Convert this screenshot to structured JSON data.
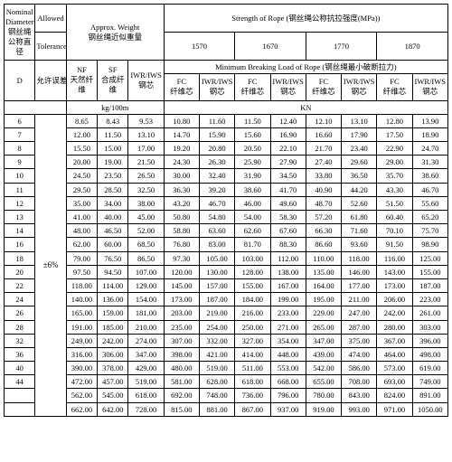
{
  "header": {
    "nominal_diameter": {
      "en": "Nominal Diameter",
      "zh": "钢丝绳公称直径"
    },
    "allowed": "Allowed",
    "tolerance": "Tolerance",
    "allowed_zh": "允许误差",
    "approx_weight": {
      "en": "Approx. Weight",
      "zh": "钢丝绳近似重量"
    },
    "strength": {
      "en": "Strength of Rope (钢丝绳公称抗拉强度(MPa))"
    },
    "strength_levels": [
      "1570",
      "1670",
      "1770",
      "1870"
    ],
    "min_breaking": "Minimum Breaking Load of Rope (钢丝绳最小破断拉力)",
    "col_weight": {
      "NF": "NF",
      "SF": "SF",
      "IWR_IWS": "IWR/IWS",
      "NF_zh": "天然纤维",
      "SF_zh": "合成纤维",
      "IWR_zh": "钢芯"
    },
    "core": {
      "FC": "FC",
      "IWR_IWS": "IWR/IWS",
      "FC_zh": "纤维芯",
      "IWR_zh": "钢芯"
    },
    "D": "D",
    "unit_weight": "kg/100m",
    "unit_force": "KN"
  },
  "tolerance_value": "±6%",
  "columns_diam": [
    "6",
    "7",
    "8",
    "9",
    "10",
    "11",
    "12",
    "13",
    "14",
    "16",
    "18",
    "20",
    "22",
    "24",
    "26",
    "28",
    "32",
    "36",
    "40",
    "44"
  ],
  "weight_rows": [
    [
      "8.65",
      "8.43",
      "9.53"
    ],
    [
      "12.00",
      "11.50",
      "13.10"
    ],
    [
      "15.50",
      "15.00",
      "17.00"
    ],
    [
      "20.00",
      "19.00",
      "21.50"
    ],
    [
      "24.50",
      "23.50",
      "26.50"
    ],
    [
      "29.50",
      "28.50",
      "32.50"
    ],
    [
      "35.00",
      "34.00",
      "38.00"
    ],
    [
      "41.00",
      "40.00",
      "45.00"
    ],
    [
      "48.00",
      "46.50",
      "52.00"
    ],
    [
      "62.00",
      "60.00",
      "68.50"
    ],
    [
      "79.00",
      "76.50",
      "86.50"
    ],
    [
      "97.50",
      "94.50",
      "107.00"
    ],
    [
      "118.00",
      "114.00",
      "129.00"
    ],
    [
      "140.00",
      "136.00",
      "154.00"
    ],
    [
      "165.00",
      "159.00",
      "181.00"
    ],
    [
      "191.00",
      "185.00",
      "210.00"
    ],
    [
      "249.00",
      "242.00",
      "274.00"
    ],
    [
      "316.00",
      "306.00",
      "347.00"
    ],
    [
      "390.00",
      "378.00",
      "429.00"
    ],
    [
      "472.00",
      "457.00",
      "519.00"
    ]
  ],
  "strength_rows": [
    [
      "10.80",
      "11.60",
      "11.50",
      "12.40",
      "12.10",
      "13.10",
      "12.80",
      "13.90"
    ],
    [
      "14.70",
      "15.90",
      "15.60",
      "16.90",
      "16.60",
      "17.90",
      "17.50",
      "18.90"
    ],
    [
      "19.20",
      "20.80",
      "20.50",
      "22.10",
      "21.70",
      "23.40",
      "22.90",
      "24.70"
    ],
    [
      "24.30",
      "26.30",
      "25.90",
      "27.90",
      "27.40",
      "29.60",
      "29.00",
      "31.30"
    ],
    [
      "30.00",
      "32.40",
      "31.90",
      "34.50",
      "33.80",
      "36.50",
      "35.70",
      "38.60"
    ],
    [
      "36.30",
      "39.20",
      "38.60",
      "41.70",
      "40.90",
      "44.20",
      "43.30",
      "46.70"
    ],
    [
      "43.20",
      "46.70",
      "46.00",
      "49.60",
      "48.70",
      "52.60",
      "51.50",
      "55.60"
    ],
    [
      "50.80",
      "54.80",
      "54.00",
      "58.30",
      "57.20",
      "61.80",
      "60.40",
      "65.20"
    ],
    [
      "58.80",
      "63.60",
      "62.60",
      "67.60",
      "66.30",
      "71.60",
      "70.10",
      "75.70"
    ],
    [
      "76.80",
      "83.00",
      "81.70",
      "88.30",
      "86.60",
      "93.60",
      "91.50",
      "98.90"
    ],
    [
      "97.30",
      "105.00",
      "103.00",
      "112.00",
      "110.00",
      "118.00",
      "116.00",
      "125.00"
    ],
    [
      "120.00",
      "130.00",
      "128.00",
      "138.00",
      "135.00",
      "146.00",
      "143.00",
      "155.00"
    ],
    [
      "145.00",
      "157.00",
      "155.00",
      "167.00",
      "164.00",
      "177.00",
      "173.00",
      "187.00"
    ],
    [
      "173.00",
      "187.00",
      "184.00",
      "199.00",
      "195.00",
      "211.00",
      "206.00",
      "223.00"
    ],
    [
      "203.00",
      "219.00",
      "216.00",
      "233.00",
      "229.00",
      "247.00",
      "242.00",
      "261.00"
    ],
    [
      "235.00",
      "254.00",
      "250.00",
      "271.00",
      "265.00",
      "287.00",
      "280.00",
      "303.00"
    ],
    [
      "307.00",
      "332.00",
      "327.00",
      "354.00",
      "347.00",
      "375.00",
      "367.00",
      "396.00"
    ],
    [
      "398.00",
      "421.00",
      "414.00",
      "448.00",
      "439.00",
      "474.00",
      "464.00",
      "498.00"
    ],
    [
      "480.00",
      "519.00",
      "511.00",
      "553.00",
      "542.00",
      "586.00",
      "573.00",
      "619.00"
    ],
    [
      "581.00",
      "628.00",
      "618.00",
      "668.00",
      "655.00",
      "708.00",
      "693.00",
      "749.00"
    ]
  ],
  "extra_row": {
    "weight": [
      "562.00",
      "545.00",
      "618.00"
    ],
    "strength": [
      "692.00",
      "748.00",
      "736.00",
      "796.00",
      "780.00",
      "843.00",
      "824.00",
      "891.00"
    ]
  },
  "last_row": {
    "weight": [
      "662.00",
      "642.00",
      "728.00"
    ],
    "strength": [
      "815.00",
      "881.00",
      "867.00",
      "937.00",
      "919.00",
      "993.00",
      "971.00",
      "1050.00"
    ]
  }
}
